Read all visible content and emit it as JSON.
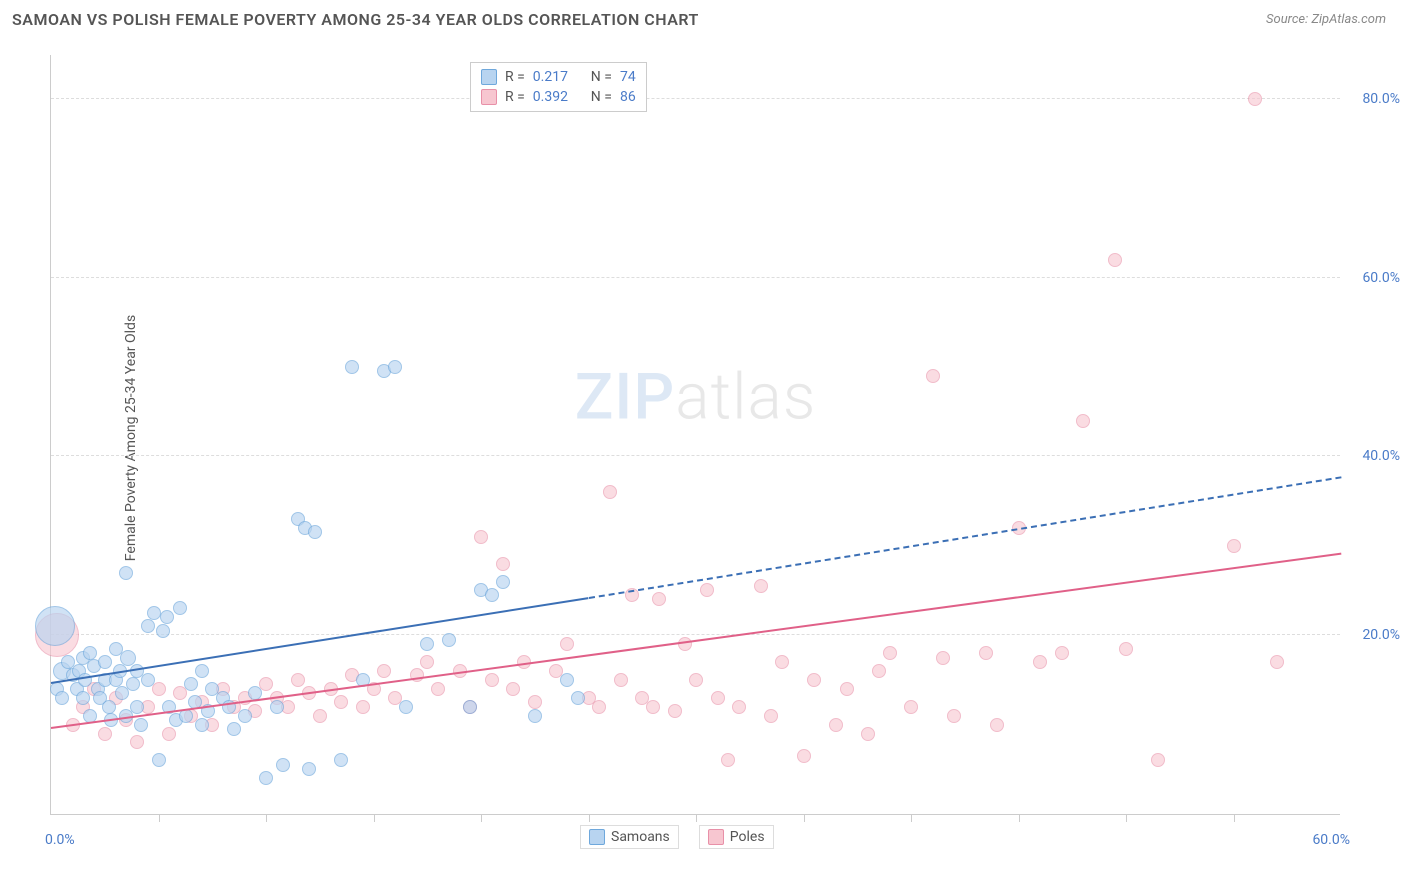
{
  "header": {
    "title": "SAMOAN VS POLISH FEMALE POVERTY AMONG 25-34 YEAR OLDS CORRELATION CHART",
    "source_label": "Source:",
    "source_name": "ZipAtlas.com"
  },
  "chart": {
    "type": "scatter",
    "y_axis_title": "Female Poverty Among 25-34 Year Olds",
    "xlim": [
      0,
      60
    ],
    "ylim": [
      0,
      85
    ],
    "x_min_label": "0.0%",
    "x_max_label": "60.0%",
    "y_ticks": [
      {
        "value": 20,
        "label": "20.0%"
      },
      {
        "value": 40,
        "label": "40.0%"
      },
      {
        "value": 60,
        "label": "60.0%"
      },
      {
        "value": 80,
        "label": "80.0%"
      }
    ],
    "x_tick_step": 5,
    "grid_color": "#dddddd",
    "axis_color": "#cccccc",
    "background_color": "#ffffff",
    "tick_label_color": "#4a7bc8",
    "watermark": {
      "part1": "ZIP",
      "part2": "atlas"
    }
  },
  "stats_legend": {
    "rows": [
      {
        "swatch_fill": "#b8d4f0",
        "swatch_border": "#6fa8dc",
        "r_label": "R =",
        "r": "0.217",
        "n_label": "N =",
        "n": "74"
      },
      {
        "swatch_fill": "#f7c6d0",
        "swatch_border": "#e890a8",
        "r_label": "R =",
        "r": "0.392",
        "n_label": "N =",
        "n": "86"
      }
    ]
  },
  "series_legend": {
    "items": [
      {
        "label": "Samoans",
        "fill": "#b8d4f0",
        "border": "#6fa8dc"
      },
      {
        "label": "Poles",
        "fill": "#f7c6d0",
        "border": "#e890a8"
      }
    ]
  },
  "series": {
    "samoans": {
      "fill": "#b8d4f0",
      "border": "#6fa8dc",
      "opacity": 0.65,
      "base_radius": 7,
      "trend": {
        "x1": 0,
        "y1": 14.5,
        "x2": 25,
        "y2": 24,
        "color": "#3b6fb5",
        "dashed_x2": 60,
        "dashed_y2": 37.5
      },
      "points": [
        {
          "x": 0.2,
          "y": 21,
          "r": 20
        },
        {
          "x": 0.3,
          "y": 14,
          "r": 7
        },
        {
          "x": 0.5,
          "y": 16,
          "r": 9
        },
        {
          "x": 0.5,
          "y": 13,
          "r": 7
        },
        {
          "x": 0.8,
          "y": 17,
          "r": 7
        },
        {
          "x": 1.0,
          "y": 15.5,
          "r": 7
        },
        {
          "x": 1.2,
          "y": 14,
          "r": 7
        },
        {
          "x": 1.3,
          "y": 16,
          "r": 7
        },
        {
          "x": 1.5,
          "y": 17.5,
          "r": 7
        },
        {
          "x": 1.5,
          "y": 13,
          "r": 7
        },
        {
          "x": 1.6,
          "y": 15,
          "r": 7
        },
        {
          "x": 1.8,
          "y": 18,
          "r": 7
        },
        {
          "x": 1.8,
          "y": 11,
          "r": 7
        },
        {
          "x": 2.0,
          "y": 16.5,
          "r": 7
        },
        {
          "x": 2.2,
          "y": 14,
          "r": 7
        },
        {
          "x": 2.3,
          "y": 13,
          "r": 7
        },
        {
          "x": 2.5,
          "y": 15,
          "r": 7
        },
        {
          "x": 2.5,
          "y": 17,
          "r": 7
        },
        {
          "x": 2.7,
          "y": 12,
          "r": 7
        },
        {
          "x": 2.8,
          "y": 10.5,
          "r": 7
        },
        {
          "x": 3.0,
          "y": 18.5,
          "r": 7
        },
        {
          "x": 3.0,
          "y": 15,
          "r": 7
        },
        {
          "x": 3.2,
          "y": 16,
          "r": 7
        },
        {
          "x": 3.3,
          "y": 13.5,
          "r": 7
        },
        {
          "x": 3.5,
          "y": 27,
          "r": 7
        },
        {
          "x": 3.5,
          "y": 11,
          "r": 7
        },
        {
          "x": 3.6,
          "y": 17.5,
          "r": 8
        },
        {
          "x": 3.8,
          "y": 14.5,
          "r": 7
        },
        {
          "x": 4.0,
          "y": 12,
          "r": 7
        },
        {
          "x": 4.0,
          "y": 16,
          "r": 7
        },
        {
          "x": 4.2,
          "y": 10,
          "r": 7
        },
        {
          "x": 4.5,
          "y": 21,
          "r": 7
        },
        {
          "x": 4.5,
          "y": 15,
          "r": 7
        },
        {
          "x": 4.8,
          "y": 22.5,
          "r": 7
        },
        {
          "x": 5.0,
          "y": 6,
          "r": 7
        },
        {
          "x": 5.2,
          "y": 20.5,
          "r": 7
        },
        {
          "x": 5.4,
          "y": 22,
          "r": 7
        },
        {
          "x": 5.5,
          "y": 12,
          "r": 7
        },
        {
          "x": 5.8,
          "y": 10.5,
          "r": 7
        },
        {
          "x": 6.0,
          "y": 23,
          "r": 7
        },
        {
          "x": 6.3,
          "y": 11,
          "r": 7
        },
        {
          "x": 6.5,
          "y": 14.5,
          "r": 7
        },
        {
          "x": 6.7,
          "y": 12.5,
          "r": 7
        },
        {
          "x": 7.0,
          "y": 10,
          "r": 7
        },
        {
          "x": 7.0,
          "y": 16,
          "r": 7
        },
        {
          "x": 7.3,
          "y": 11.5,
          "r": 7
        },
        {
          "x": 7.5,
          "y": 14,
          "r": 7
        },
        {
          "x": 8.0,
          "y": 13,
          "r": 7
        },
        {
          "x": 8.3,
          "y": 12,
          "r": 7
        },
        {
          "x": 8.5,
          "y": 9.5,
          "r": 7
        },
        {
          "x": 9.0,
          "y": 11,
          "r": 7
        },
        {
          "x": 9.5,
          "y": 13.5,
          "r": 7
        },
        {
          "x": 10.0,
          "y": 4,
          "r": 7
        },
        {
          "x": 10.5,
          "y": 12,
          "r": 7
        },
        {
          "x": 10.8,
          "y": 5.5,
          "r": 7
        },
        {
          "x": 11.5,
          "y": 33,
          "r": 7
        },
        {
          "x": 11.8,
          "y": 32,
          "r": 7
        },
        {
          "x": 12.0,
          "y": 5,
          "r": 7
        },
        {
          "x": 12.3,
          "y": 31.5,
          "r": 7
        },
        {
          "x": 13.5,
          "y": 6,
          "r": 7
        },
        {
          "x": 14.0,
          "y": 50,
          "r": 7
        },
        {
          "x": 14.5,
          "y": 15,
          "r": 7
        },
        {
          "x": 15.5,
          "y": 49.5,
          "r": 7
        },
        {
          "x": 16.0,
          "y": 50,
          "r": 7
        },
        {
          "x": 16.5,
          "y": 12,
          "r": 7
        },
        {
          "x": 17.5,
          "y": 19,
          "r": 7
        },
        {
          "x": 18.5,
          "y": 19.5,
          "r": 7
        },
        {
          "x": 19.5,
          "y": 12,
          "r": 7
        },
        {
          "x": 20.0,
          "y": 25,
          "r": 7
        },
        {
          "x": 20.5,
          "y": 24.5,
          "r": 7
        },
        {
          "x": 21.0,
          "y": 26,
          "r": 7
        },
        {
          "x": 22.5,
          "y": 11,
          "r": 7
        },
        {
          "x": 24.0,
          "y": 15,
          "r": 7
        },
        {
          "x": 24.5,
          "y": 13,
          "r": 7
        }
      ]
    },
    "poles": {
      "fill": "#f7c6d0",
      "border": "#e890a8",
      "opacity": 0.6,
      "base_radius": 7,
      "trend": {
        "x1": 0,
        "y1": 9.5,
        "x2": 60,
        "y2": 29,
        "color": "#e06088"
      },
      "points": [
        {
          "x": 0.3,
          "y": 20,
          "r": 22
        },
        {
          "x": 1.0,
          "y": 10,
          "r": 7
        },
        {
          "x": 1.5,
          "y": 12,
          "r": 7
        },
        {
          "x": 2.0,
          "y": 14,
          "r": 7
        },
        {
          "x": 2.5,
          "y": 9,
          "r": 7
        },
        {
          "x": 3.0,
          "y": 13,
          "r": 7
        },
        {
          "x": 3.5,
          "y": 10.5,
          "r": 7
        },
        {
          "x": 4.0,
          "y": 8,
          "r": 7
        },
        {
          "x": 4.5,
          "y": 12,
          "r": 7
        },
        {
          "x": 5.0,
          "y": 14,
          "r": 7
        },
        {
          "x": 5.5,
          "y": 9,
          "r": 7
        },
        {
          "x": 6.0,
          "y": 13.5,
          "r": 7
        },
        {
          "x": 6.5,
          "y": 11,
          "r": 7
        },
        {
          "x": 7.0,
          "y": 12.5,
          "r": 7
        },
        {
          "x": 7.5,
          "y": 10,
          "r": 7
        },
        {
          "x": 8.0,
          "y": 14,
          "r": 7
        },
        {
          "x": 8.5,
          "y": 12,
          "r": 7
        },
        {
          "x": 9.0,
          "y": 13,
          "r": 7
        },
        {
          "x": 9.5,
          "y": 11.5,
          "r": 7
        },
        {
          "x": 10.0,
          "y": 14.5,
          "r": 7
        },
        {
          "x": 10.5,
          "y": 13,
          "r": 7
        },
        {
          "x": 11.0,
          "y": 12,
          "r": 7
        },
        {
          "x": 11.5,
          "y": 15,
          "r": 7
        },
        {
          "x": 12.0,
          "y": 13.5,
          "r": 7
        },
        {
          "x": 12.5,
          "y": 11,
          "r": 7
        },
        {
          "x": 13.0,
          "y": 14,
          "r": 7
        },
        {
          "x": 13.5,
          "y": 12.5,
          "r": 7
        },
        {
          "x": 14.0,
          "y": 15.5,
          "r": 7
        },
        {
          "x": 14.5,
          "y": 12,
          "r": 7
        },
        {
          "x": 15.0,
          "y": 14,
          "r": 7
        },
        {
          "x": 15.5,
          "y": 16,
          "r": 7
        },
        {
          "x": 16.0,
          "y": 13,
          "r": 7
        },
        {
          "x": 17.0,
          "y": 15.5,
          "r": 7
        },
        {
          "x": 17.5,
          "y": 17,
          "r": 7
        },
        {
          "x": 18.0,
          "y": 14,
          "r": 7
        },
        {
          "x": 19.0,
          "y": 16,
          "r": 7
        },
        {
          "x": 19.5,
          "y": 12,
          "r": 7
        },
        {
          "x": 20.0,
          "y": 31,
          "r": 7
        },
        {
          "x": 20.5,
          "y": 15,
          "r": 7
        },
        {
          "x": 21.0,
          "y": 28,
          "r": 7
        },
        {
          "x": 21.5,
          "y": 14,
          "r": 7
        },
        {
          "x": 22.0,
          "y": 17,
          "r": 7
        },
        {
          "x": 22.5,
          "y": 12.5,
          "r": 7
        },
        {
          "x": 23.5,
          "y": 16,
          "r": 7
        },
        {
          "x": 24.0,
          "y": 19,
          "r": 7
        },
        {
          "x": 25.0,
          "y": 13,
          "r": 7
        },
        {
          "x": 25.5,
          "y": 12,
          "r": 7
        },
        {
          "x": 26.0,
          "y": 36,
          "r": 7
        },
        {
          "x": 26.5,
          "y": 15,
          "r": 7
        },
        {
          "x": 27.0,
          "y": 24.5,
          "r": 7
        },
        {
          "x": 27.5,
          "y": 13,
          "r": 7
        },
        {
          "x": 28.0,
          "y": 12,
          "r": 7
        },
        {
          "x": 28.3,
          "y": 24,
          "r": 7
        },
        {
          "x": 29.0,
          "y": 11.5,
          "r": 7
        },
        {
          "x": 29.5,
          "y": 19,
          "r": 7
        },
        {
          "x": 30.0,
          "y": 15,
          "r": 7
        },
        {
          "x": 30.5,
          "y": 25,
          "r": 7
        },
        {
          "x": 31.0,
          "y": 13,
          "r": 7
        },
        {
          "x": 31.5,
          "y": 6,
          "r": 7
        },
        {
          "x": 32.0,
          "y": 12,
          "r": 7
        },
        {
          "x": 33.0,
          "y": 25.5,
          "r": 7
        },
        {
          "x": 33.5,
          "y": 11,
          "r": 7
        },
        {
          "x": 34.0,
          "y": 17,
          "r": 7
        },
        {
          "x": 35.0,
          "y": 6.5,
          "r": 7
        },
        {
          "x": 35.5,
          "y": 15,
          "r": 7
        },
        {
          "x": 36.5,
          "y": 10,
          "r": 7
        },
        {
          "x": 37.0,
          "y": 14,
          "r": 7
        },
        {
          "x": 38.0,
          "y": 9,
          "r": 7
        },
        {
          "x": 38.5,
          "y": 16,
          "r": 7
        },
        {
          "x": 39.0,
          "y": 18,
          "r": 7
        },
        {
          "x": 40.0,
          "y": 12,
          "r": 7
        },
        {
          "x": 41.0,
          "y": 49,
          "r": 7
        },
        {
          "x": 41.5,
          "y": 17.5,
          "r": 7
        },
        {
          "x": 42.0,
          "y": 11,
          "r": 7
        },
        {
          "x": 43.5,
          "y": 18,
          "r": 7
        },
        {
          "x": 44.0,
          "y": 10,
          "r": 7
        },
        {
          "x": 45.0,
          "y": 32,
          "r": 7
        },
        {
          "x": 46.0,
          "y": 17,
          "r": 7
        },
        {
          "x": 47.0,
          "y": 18,
          "r": 7
        },
        {
          "x": 48.0,
          "y": 44,
          "r": 7
        },
        {
          "x": 49.5,
          "y": 62,
          "r": 7
        },
        {
          "x": 50.0,
          "y": 18.5,
          "r": 7
        },
        {
          "x": 51.5,
          "y": 6,
          "r": 7
        },
        {
          "x": 55.0,
          "y": 30,
          "r": 7
        },
        {
          "x": 56.0,
          "y": 80,
          "r": 7
        },
        {
          "x": 57.0,
          "y": 17,
          "r": 7
        }
      ]
    }
  }
}
